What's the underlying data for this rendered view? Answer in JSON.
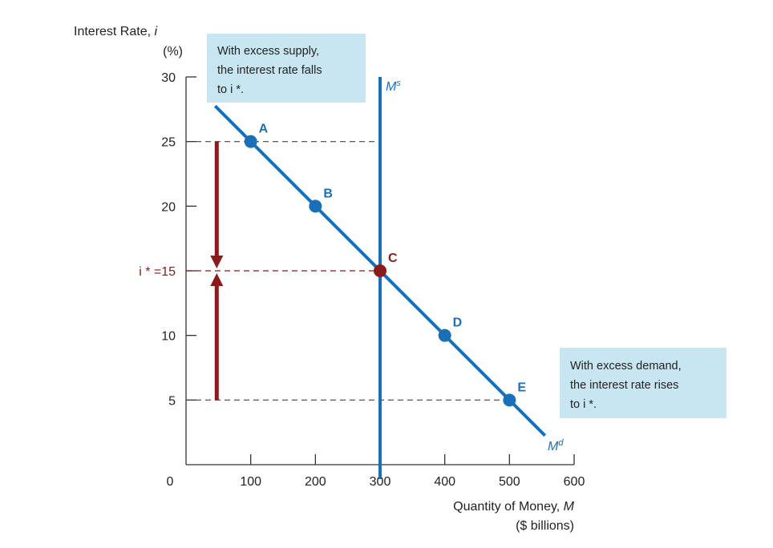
{
  "chart_data": {
    "type": "line",
    "xlabel": "Quantity of Money, M",
    "xlabel_unit": "($ billions)",
    "ylabel": "Interest Rate, i",
    "ylabel_unit": "(%)",
    "xlim": [
      0,
      600
    ],
    "ylim": [
      0,
      30
    ],
    "x_ticks": [
      100,
      200,
      300,
      400,
      500,
      600
    ],
    "y_ticks": [
      5,
      10,
      20,
      25,
      30
    ],
    "origin_label": "0",
    "equilibrium_label": "i * =15",
    "equilibrium_rate": 15,
    "series": [
      {
        "name": "Md",
        "label_main": "M",
        "label_sup": "d",
        "color": "#1a70b8",
        "line_x": [
          45,
          555
        ],
        "line_y": [
          27.75,
          2.25
        ],
        "points": [
          {
            "label": "A",
            "x": 100,
            "y": 25
          },
          {
            "label": "B",
            "x": 200,
            "y": 20
          },
          {
            "label": "C",
            "x": 300,
            "y": 15
          },
          {
            "label": "D",
            "x": 400,
            "y": 10
          },
          {
            "label": "E",
            "x": 500,
            "y": 5
          }
        ]
      },
      {
        "name": "Ms",
        "label_main": "M",
        "label_sup": "s",
        "color": "#1a70b8",
        "x": 300
      }
    ],
    "equilibrium_point_color": "#8b1a1a",
    "arrow_color": "#8b1a1a",
    "annotations": [
      {
        "id": "excess-supply",
        "lines": [
          "With excess supply,",
          "the interest rate falls",
          "to i *."
        ]
      },
      {
        "id": "excess-demand",
        "lines": [
          "With excess demand,",
          "the interest rate rises",
          "to i *."
        ]
      }
    ],
    "annotation_bg": "#c8e6f2",
    "grid": false
  }
}
